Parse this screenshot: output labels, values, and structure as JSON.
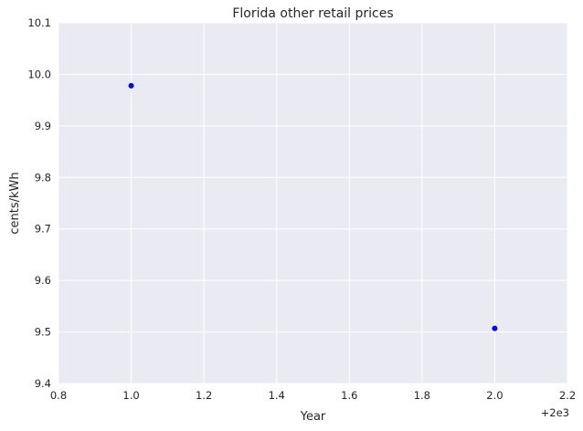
{
  "chart_data": {
    "type": "scatter",
    "title": "Florida   other retail prices",
    "xlabel": "Year",
    "ylabel": "cents/kWh",
    "x_offset_label": "+2e3",
    "xlim": [
      0.8,
      2.2
    ],
    "ylim": [
      9.4,
      10.1
    ],
    "xticks": [
      "0.8",
      "1.0",
      "1.2",
      "1.4",
      "1.6",
      "1.8",
      "2.0",
      "2.2"
    ],
    "yticks": [
      "9.4",
      "9.5",
      "9.6",
      "9.7",
      "9.8",
      "9.9",
      "10.0",
      "10.1"
    ],
    "grid": true,
    "series": [
      {
        "color": "#0000ff",
        "x": [
          1.0,
          2.0
        ],
        "y": [
          9.978,
          9.507
        ]
      }
    ],
    "colors": {
      "background": "#eaeaf2",
      "grid": "#ffffff",
      "point": "#0000ff"
    }
  }
}
